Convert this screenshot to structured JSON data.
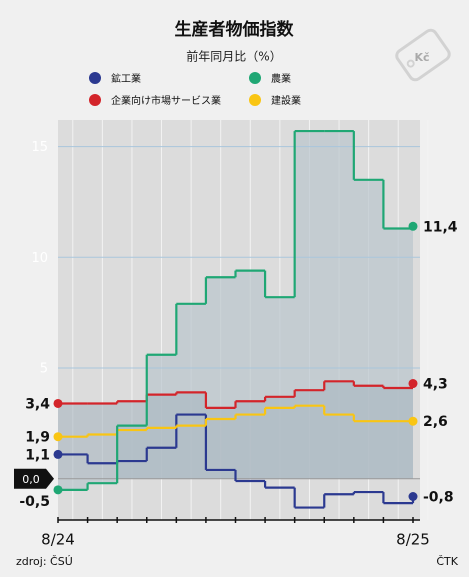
{
  "chart_data": {
    "type": "step",
    "title": "生産者物価指数",
    "subtitle": "前年同月比（%）",
    "badge": "Kč",
    "source": "zdroj: ČSÚ",
    "credit": "ČTK",
    "categories": [
      "8/24",
      null,
      null,
      null,
      null,
      null,
      null,
      null,
      null,
      null,
      null,
      null,
      "8/25"
    ],
    "ylim": [
      -1.5,
      16.2
    ],
    "yticks": [
      {
        "value": 0,
        "label": "0,0"
      },
      5,
      10,
      15
    ],
    "grid": true,
    "series": [
      {
        "name": "鉱工業",
        "color": "#2b3990",
        "values": [
          1.1,
          0.7,
          0.8,
          1.4,
          2.9,
          0.4,
          -0.1,
          -0.4,
          -1.3,
          -0.7,
          -0.6,
          -1.1,
          -0.8
        ],
        "value_labels": [
          "1,1",
          null,
          null,
          null,
          null,
          null,
          null,
          null,
          null,
          null,
          null,
          null,
          "-0,8"
        ]
      },
      {
        "name": "農業",
        "color": "#1fa774",
        "values": [
          -0.5,
          -0.2,
          2.4,
          5.6,
          7.9,
          9.1,
          9.4,
          8.2,
          15.7,
          15.7,
          13.5,
          11.3,
          11.4
        ],
        "value_labels": [
          "-0,5",
          null,
          null,
          null,
          null,
          null,
          null,
          null,
          null,
          null,
          null,
          null,
          "11,4"
        ]
      },
      {
        "name": "企業向け市場サービス業",
        "color": "#d3242a",
        "values": [
          3.4,
          3.4,
          3.5,
          3.8,
          3.9,
          3.2,
          3.5,
          3.7,
          4.0,
          4.4,
          4.2,
          4.1,
          4.3
        ],
        "value_labels": [
          "3,4",
          null,
          null,
          null,
          null,
          null,
          null,
          null,
          null,
          null,
          null,
          null,
          "4,3"
        ]
      },
      {
        "name": "建設業",
        "color": "#f9c513",
        "values": [
          1.9,
          2.0,
          2.2,
          2.3,
          2.4,
          2.7,
          2.9,
          3.2,
          3.3,
          2.9,
          2.6,
          2.6,
          2.6
        ],
        "value_labels": [
          "1,9",
          null,
          null,
          null,
          null,
          null,
          null,
          null,
          null,
          null,
          null,
          null,
          "2,6"
        ]
      }
    ]
  }
}
